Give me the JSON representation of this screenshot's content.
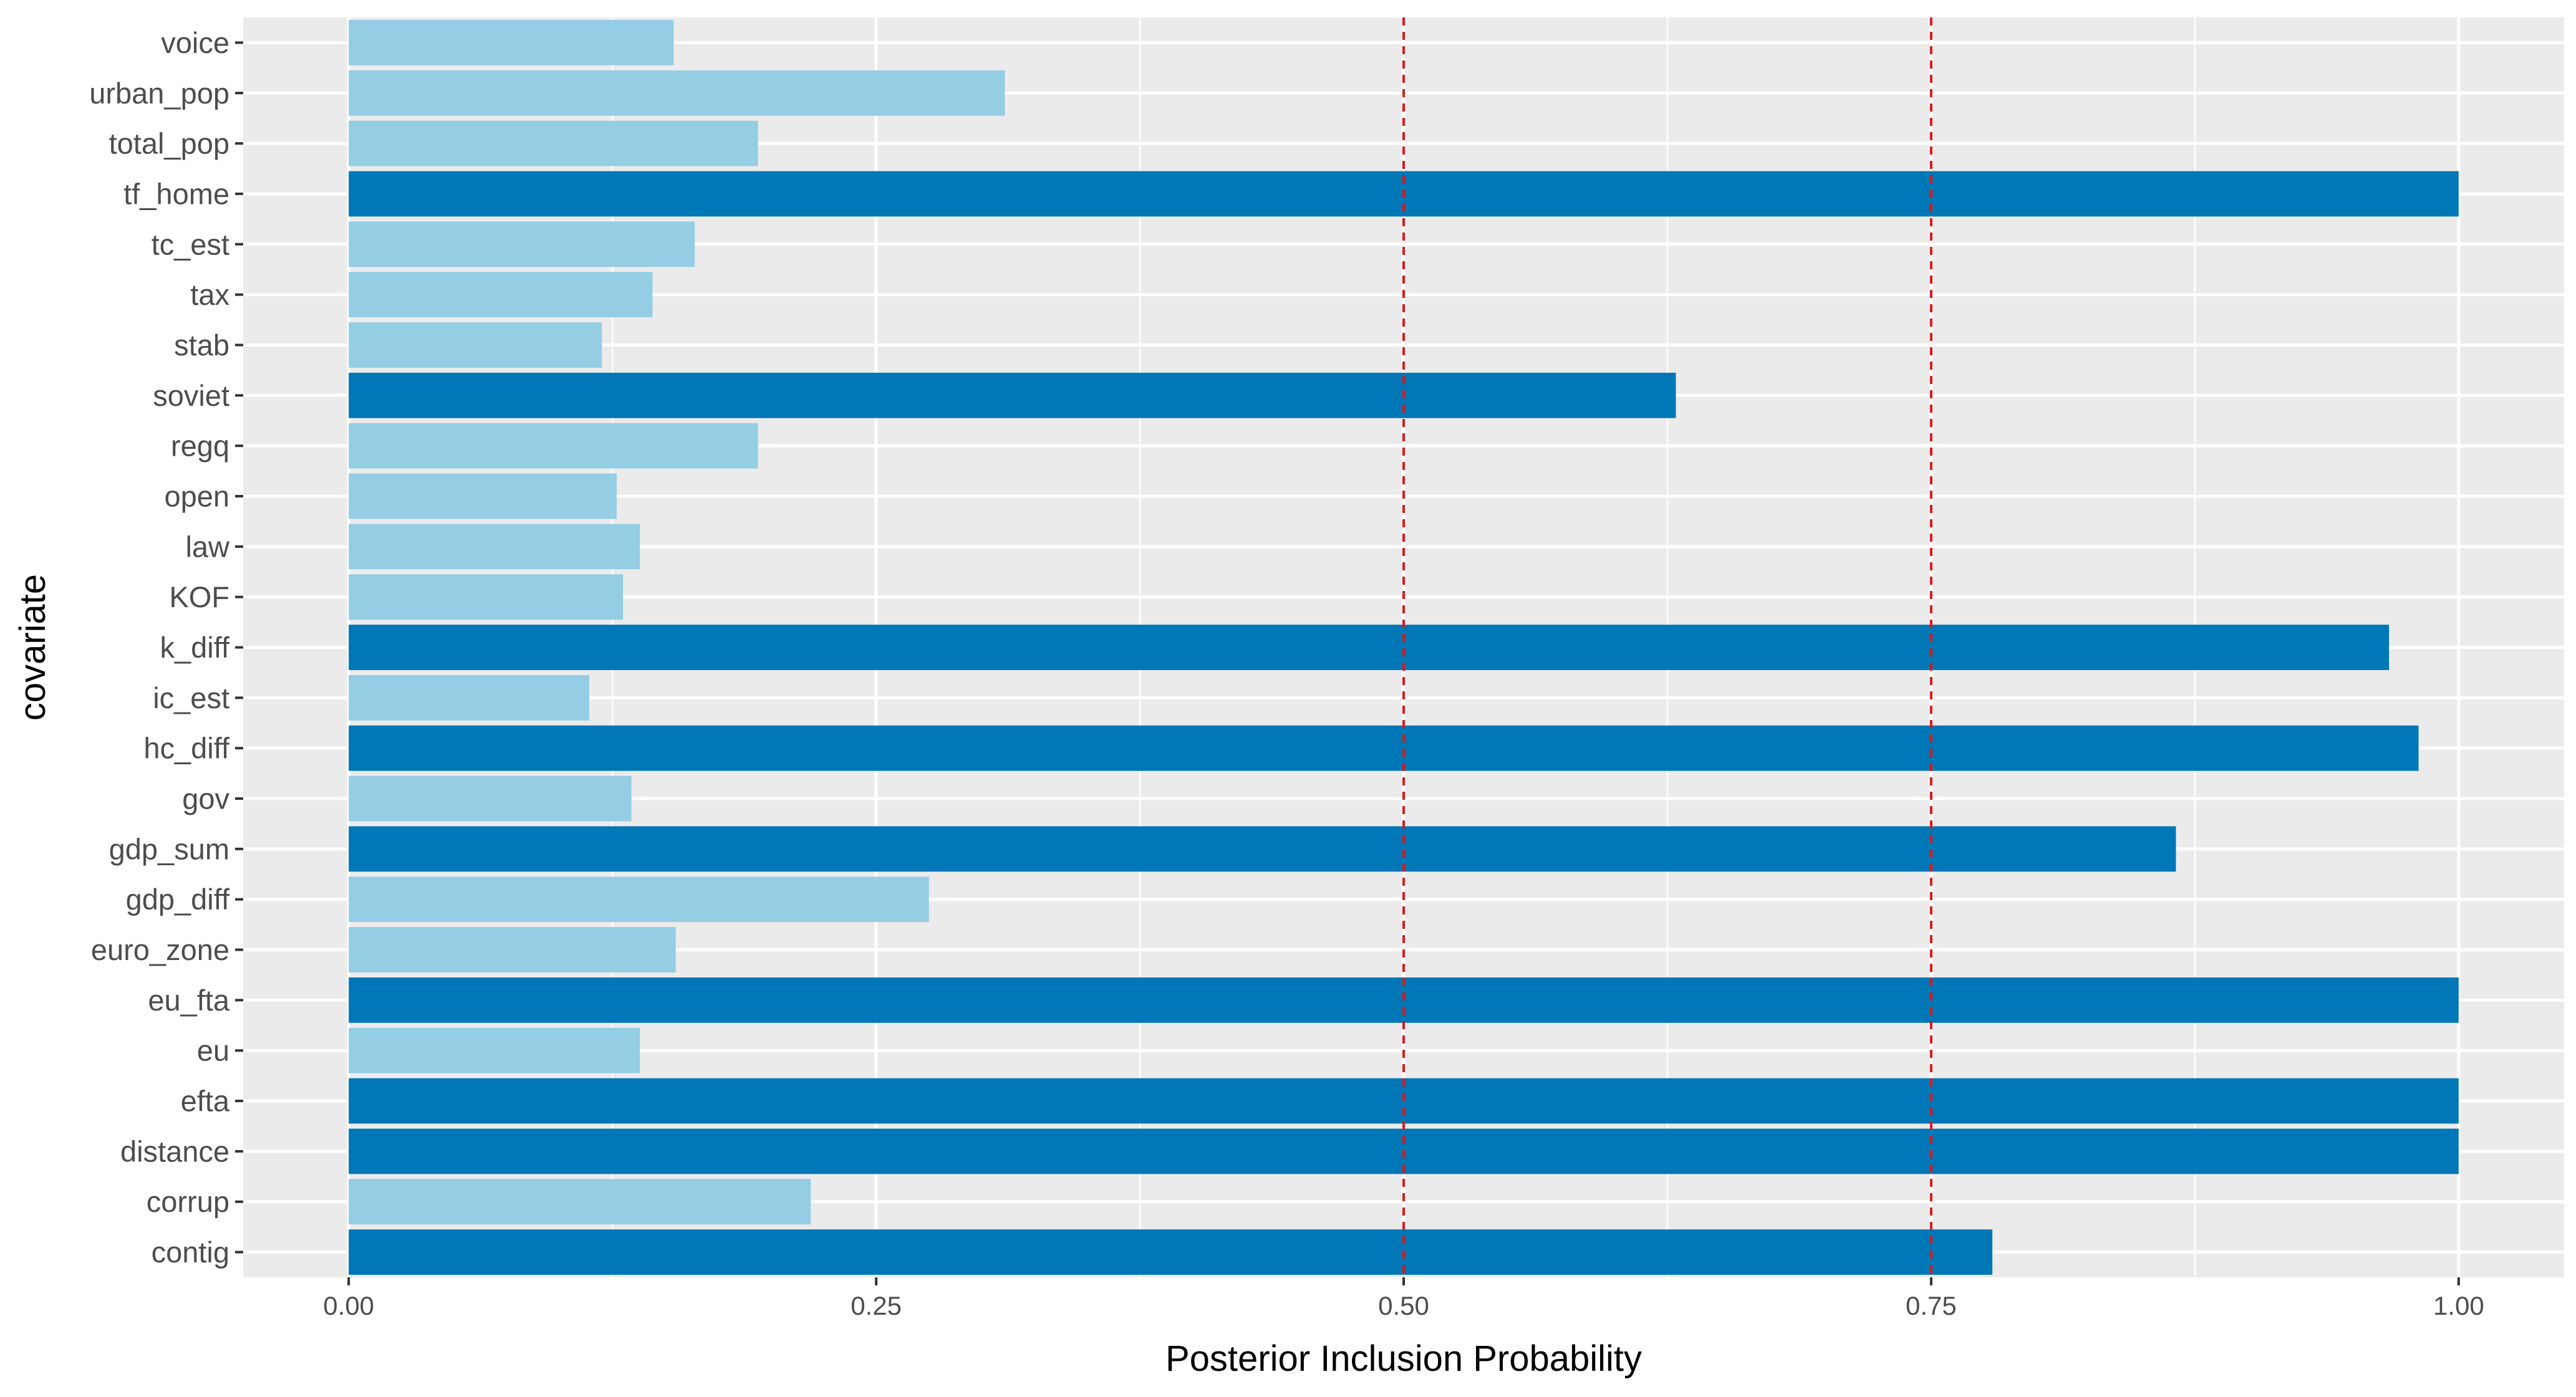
{
  "chart_data": {
    "type": "bar",
    "orientation": "horizontal",
    "title": "",
    "xlabel": "Posterior Inclusion Probability",
    "ylabel": "covariate",
    "xlim": [
      -0.05,
      1.05
    ],
    "x_ticks": [
      0.0,
      0.25,
      0.5,
      0.75,
      1.0
    ],
    "x_tick_labels": [
      "0.00",
      "0.25",
      "0.50",
      "0.75",
      "1.00"
    ],
    "reference_lines": [
      0.5,
      0.75
    ],
    "categories": [
      "voice",
      "urban_pop",
      "total_pop",
      "tf_home",
      "tc_est",
      "tax",
      "stab",
      "soviet",
      "regq",
      "open",
      "law",
      "KOF",
      "k_diff",
      "ic_est",
      "hc_diff",
      "gov",
      "gdp_sum",
      "gdp_diff",
      "euro_zone",
      "eu_fta",
      "eu",
      "efta",
      "distance",
      "corrup",
      "contig"
    ],
    "values": [
      0.154,
      0.311,
      0.194,
      1.0,
      0.164,
      0.144,
      0.12,
      0.629,
      0.194,
      0.127,
      0.138,
      0.13,
      0.967,
      0.114,
      0.981,
      0.134,
      0.866,
      0.275,
      0.155,
      1.0,
      0.138,
      1.0,
      1.0,
      0.219,
      0.779
    ],
    "highlighted": [
      false,
      false,
      false,
      true,
      false,
      false,
      false,
      true,
      false,
      false,
      false,
      false,
      true,
      false,
      true,
      false,
      true,
      false,
      false,
      true,
      false,
      true,
      true,
      false,
      true
    ],
    "grid": true,
    "legend": "none"
  },
  "colors": {
    "panel_background": "#ebebeb",
    "gridline": "#ffffff",
    "bar_highlight": "#0077b6",
    "bar_normal": "#94cde4",
    "reference_line": "#d7191c",
    "tick_mark": "#333333"
  }
}
